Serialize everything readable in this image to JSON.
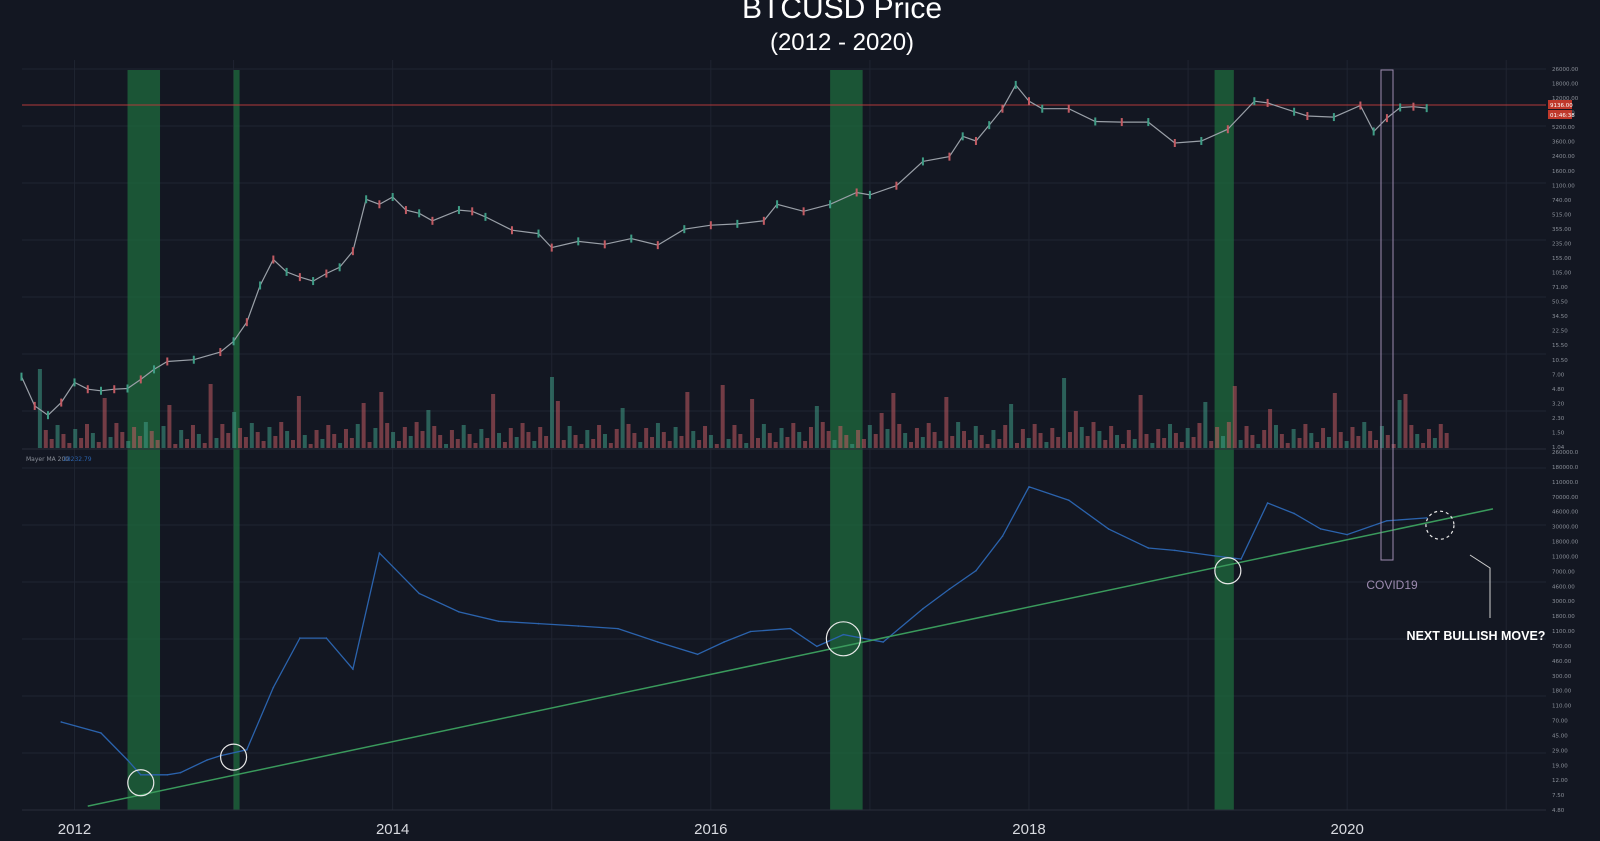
{
  "chart_data": {
    "type": "line",
    "title": "BTCUSD Price",
    "subtitle": "(2012 - 2020)",
    "x_labels": [
      "2012",
      "2014",
      "2016",
      "2018",
      "2020"
    ],
    "log_scale": true,
    "grid": true,
    "panels": [
      {
        "name": "price",
        "series_type": "candlestick",
        "y_ticks": [
          "26000.00",
          "18000.00",
          "12000.00",
          "8136.00",
          "5200.00",
          "3600.00",
          "2400.00",
          "1600.00",
          "1100.00",
          "740.00",
          "515.00",
          "355.00",
          "235.00",
          "155.00",
          "105.00",
          "71.00",
          "50.50",
          "34.50",
          "22.50",
          "15.50",
          "10.50",
          "7.00",
          "4.80",
          "3.20",
          "2.30",
          "1.50",
          "1.04"
        ],
        "price_tag": "9136.00",
        "time_tag": "01:46:38",
        "price_line_value": 9136,
        "points": [
          [
            "2011-09",
            7.0
          ],
          [
            "2011-10",
            3.2
          ],
          [
            "2011-11",
            2.5
          ],
          [
            "2011-12",
            3.5
          ],
          [
            "2012-01",
            6.0
          ],
          [
            "2012-02",
            5.0
          ],
          [
            "2012-03",
            4.8
          ],
          [
            "2012-04",
            5.0
          ],
          [
            "2012-05",
            5.1
          ],
          [
            "2012-06",
            6.5
          ],
          [
            "2012-07",
            8.5
          ],
          [
            "2012-08",
            10.5
          ],
          [
            "2012-10",
            11.0
          ],
          [
            "2012-12",
            13.5
          ],
          [
            "2013-01",
            18
          ],
          [
            "2013-02",
            30
          ],
          [
            "2013-03",
            80
          ],
          [
            "2013-04",
            160
          ],
          [
            "2013-05",
            115
          ],
          [
            "2013-06",
            100
          ],
          [
            "2013-07",
            90
          ],
          [
            "2013-08",
            110
          ],
          [
            "2013-09",
            130
          ],
          [
            "2013-10",
            200
          ],
          [
            "2013-11",
            800
          ],
          [
            "2013-12",
            700
          ],
          [
            "2014-01",
            850
          ],
          [
            "2014-02",
            600
          ],
          [
            "2014-03",
            550
          ],
          [
            "2014-04",
            450
          ],
          [
            "2014-06",
            600
          ],
          [
            "2014-07",
            580
          ],
          [
            "2014-08",
            500
          ],
          [
            "2014-10",
            350
          ],
          [
            "2014-12",
            320
          ],
          [
            "2015-01",
            220
          ],
          [
            "2015-03",
            260
          ],
          [
            "2015-05",
            240
          ],
          [
            "2015-07",
            280
          ],
          [
            "2015-09",
            235
          ],
          [
            "2015-11",
            360
          ],
          [
            "2016-01",
            400
          ],
          [
            "2016-03",
            415
          ],
          [
            "2016-05",
            450
          ],
          [
            "2016-06",
            700
          ],
          [
            "2016-08",
            580
          ],
          [
            "2016-10",
            700
          ],
          [
            "2016-12",
            960
          ],
          [
            "2017-01",
            900
          ],
          [
            "2017-03",
            1150
          ],
          [
            "2017-05",
            2200
          ],
          [
            "2017-07",
            2500
          ],
          [
            "2017-08",
            4300
          ],
          [
            "2017-09",
            3800
          ],
          [
            "2017-10",
            5800
          ],
          [
            "2017-11",
            9000
          ],
          [
            "2017-12",
            17000
          ],
          [
            "2018-01",
            11000
          ],
          [
            "2018-02",
            9000
          ],
          [
            "2018-04",
            9000
          ],
          [
            "2018-06",
            6400
          ],
          [
            "2018-08",
            6300
          ],
          [
            "2018-10",
            6300
          ],
          [
            "2018-12",
            3600
          ],
          [
            "2019-02",
            3800
          ],
          [
            "2019-04",
            5200
          ],
          [
            "2019-06",
            11000
          ],
          [
            "2019-07",
            10500
          ],
          [
            "2019-09",
            8300
          ],
          [
            "2019-10",
            7400
          ],
          [
            "2019-12",
            7200
          ],
          [
            "2020-02",
            9800
          ],
          [
            "2020-03",
            4900
          ],
          [
            "2020-04",
            7000
          ],
          [
            "2020-05",
            9300
          ],
          [
            "2020-06",
            9500
          ],
          [
            "2020-07",
            9136
          ]
        ]
      },
      {
        "name": "mayer-multiple",
        "indicator_label": "Mayer MA 200",
        "indicator_value": "28232.79",
        "line_color": "#2b63ad",
        "y_ticks": [
          "260000.0",
          "180000.0",
          "110000.0",
          "70000.00",
          "46000.00",
          "30000.00",
          "18000.00",
          "11000.00",
          "7000.00",
          "4600.00",
          "3000.00",
          "1800.00",
          "1100.00",
          "700.00",
          "460.00",
          "300.00",
          "180.00",
          "110.00",
          "70.00",
          "45.00",
          "29.00",
          "19.00",
          "12.00",
          "7.50",
          "4.80"
        ],
        "points": [
          [
            "2011-12",
            70
          ],
          [
            "2012-03",
            50
          ],
          [
            "2012-05",
            22
          ],
          [
            "2012-06",
            14
          ],
          [
            "2012-08",
            14
          ],
          [
            "2012-09",
            15
          ],
          [
            "2012-11",
            22
          ],
          [
            "2012-12",
            25
          ],
          [
            "2013-02",
            30
          ],
          [
            "2013-04",
            200
          ],
          [
            "2013-06",
            900
          ],
          [
            "2013-08",
            900
          ],
          [
            "2013-10",
            350
          ],
          [
            "2013-12",
            12000
          ],
          [
            "2014-03",
            3500
          ],
          [
            "2014-06",
            2000
          ],
          [
            "2014-09",
            1500
          ],
          [
            "2014-12",
            1400
          ],
          [
            "2015-03",
            1300
          ],
          [
            "2015-06",
            1200
          ],
          [
            "2015-09",
            800
          ],
          [
            "2015-12",
            550
          ],
          [
            "2016-02",
            800
          ],
          [
            "2016-04",
            1100
          ],
          [
            "2016-07",
            1200
          ],
          [
            "2016-09",
            700
          ],
          [
            "2016-11",
            1000
          ],
          [
            "2017-02",
            800
          ],
          [
            "2017-05",
            2200
          ],
          [
            "2017-07",
            4000
          ],
          [
            "2017-09",
            7000
          ],
          [
            "2017-11",
            20000
          ],
          [
            "2018-01",
            90000
          ],
          [
            "2018-04",
            60000
          ],
          [
            "2018-07",
            25000
          ],
          [
            "2018-10",
            14000
          ],
          [
            "2018-12",
            13000
          ],
          [
            "2019-03",
            11000
          ],
          [
            "2019-05",
            10000
          ],
          [
            "2019-07",
            55000
          ],
          [
            "2019-09",
            40000
          ],
          [
            "2019-11",
            25000
          ],
          [
            "2020-01",
            21000
          ],
          [
            "2020-04",
            32000
          ],
          [
            "2020-07",
            35000
          ]
        ],
        "trendline": [
          [
            "2012-02",
            5.4
          ],
          [
            "2020-12",
            46000
          ]
        ],
        "highlights": [
          {
            "type": "circle",
            "date": "2012-06",
            "value": 11
          },
          {
            "type": "circle",
            "date": "2013-01",
            "value": 24
          },
          {
            "type": "circle",
            "date": "2016-11",
            "value": 880
          },
          {
            "type": "circle",
            "date": "2019-04",
            "value": 7000
          },
          {
            "type": "dashed-circle",
            "date": "2020-08",
            "value": 28000
          }
        ]
      }
    ],
    "shaded_periods": [
      {
        "from": "2012-05",
        "to": "2012-07"
      },
      {
        "from": "2013-01",
        "to": "2013-01"
      },
      {
        "from": "2016-10",
        "to": "2016-12"
      },
      {
        "from": "2019-03",
        "to": "2019-04"
      }
    ],
    "covid_box": {
      "from": "2020-01",
      "to": "2020-02"
    },
    "annotations": {
      "covid": "COVID19",
      "next_move": "NEXT BULLISH MOVE?"
    },
    "colors": {
      "background": "#131722",
      "grid": "#1f2431",
      "shade": "#1f6b3d",
      "trend": "#3a9a5c",
      "price_line": "#b23a3a",
      "candle_up": "#3f9d86",
      "candle_down": "#c25b63",
      "annotation_box": "#9d8bb0"
    }
  }
}
